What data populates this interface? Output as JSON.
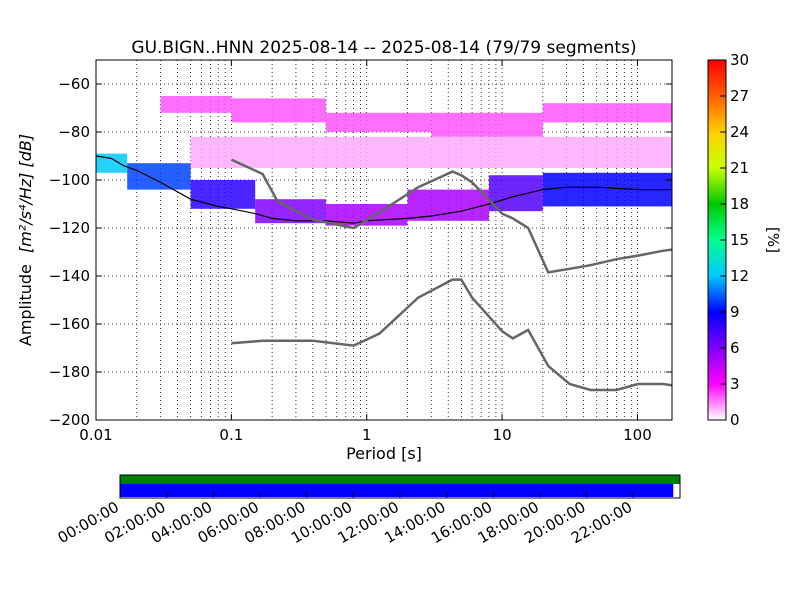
{
  "chart_data": {
    "type": "heatmap",
    "title": "GU.BIGN..HNN   2025-08-14 -- 2025-08-14  (79/79 segments)",
    "xlabel": "Period [s]",
    "ylabel_prefix": "Amplitude",
    "ylabel_unit": "[m²/s⁴/Hz] [dB]",
    "x_scale": "log",
    "xlim": [
      0.01,
      180
    ],
    "ylim": [
      -200,
      -50
    ],
    "x_ticks": [
      0.01,
      0.1,
      1,
      10,
      100
    ],
    "x_tick_labels": [
      "0.01",
      "0.1",
      "1",
      "10",
      "100"
    ],
    "y_ticks": [
      -200,
      -180,
      -160,
      -140,
      -120,
      -100,
      -80,
      -60
    ],
    "y_tick_labels": [
      "−200",
      "−180",
      "−160",
      "−140",
      "−120",
      "−100",
      "−80",
      "−60"
    ],
    "grid": true,
    "colorbar": {
      "label": "[%]",
      "range": [
        0,
        30
      ],
      "ticks": [
        0,
        3,
        6,
        9,
        12,
        15,
        18,
        21,
        24,
        27,
        30
      ],
      "tick_labels": [
        "0",
        "3",
        "6",
        "9",
        "12",
        "15",
        "18",
        "21",
        "24",
        "27",
        "30"
      ],
      "colors": [
        "#ffffff",
        "#ff00ff",
        "#8000ff",
        "#0000ff",
        "#00c8ff",
        "#00ff90",
        "#00c800",
        "#c8ff00",
        "#ffd000",
        "#ff6000",
        "#ff0000"
      ]
    },
    "noise_models": [
      {
        "name": "",
        "points": [
          [
            0.1,
            -91.5
          ],
          [
            0.17,
            -97.5
          ],
          [
            0.22,
            -109
          ],
          [
            0.4,
            -116.5
          ],
          [
            0.8,
            -120
          ],
          [
            1.24,
            -113.5
          ],
          [
            2.4,
            -103
          ],
          [
            4.3,
            -96.5
          ],
          [
            5.0,
            -98
          ],
          [
            6.0,
            -101
          ],
          [
            10,
            -114
          ],
          [
            12,
            -116
          ],
          [
            15.6,
            -120
          ],
          [
            21.9,
            -138.5
          ],
          [
            31.6,
            -137
          ],
          [
            45,
            -135.5
          ],
          [
            70,
            -133
          ],
          [
            101,
            -131.5
          ],
          [
            154,
            -129.5
          ],
          [
            180,
            -129
          ]
        ]
      },
      {
        "name": "",
        "points": [
          [
            0.1,
            -168
          ],
          [
            0.17,
            -167
          ],
          [
            0.4,
            -167
          ],
          [
            0.8,
            -169
          ],
          [
            1.24,
            -164
          ],
          [
            2.4,
            -149
          ],
          [
            4.3,
            -141.5
          ],
          [
            5.0,
            -141.5
          ],
          [
            6.0,
            -149
          ],
          [
            10,
            -163
          ],
          [
            12,
            -166
          ],
          [
            15.6,
            -162.5
          ],
          [
            21.9,
            -177.5
          ],
          [
            31.6,
            -185
          ],
          [
            45,
            -187.5
          ],
          [
            70,
            -187.5
          ],
          [
            101,
            -185
          ],
          [
            154,
            -185
          ],
          [
            180,
            -185.5
          ]
        ]
      }
    ],
    "mode_line": [
      [
        0.01,
        -90
      ],
      [
        0.013,
        -91
      ],
      [
        0.016,
        -94
      ],
      [
        0.02,
        -96
      ],
      [
        0.03,
        -101
      ],
      [
        0.05,
        -108
      ],
      [
        0.08,
        -111
      ],
      [
        0.1,
        -112
      ],
      [
        0.15,
        -114
      ],
      [
        0.2,
        -116
      ],
      [
        0.3,
        -117
      ],
      [
        0.5,
        -117
      ],
      [
        0.8,
        -118
      ],
      [
        1,
        -117
      ],
      [
        2,
        -116
      ],
      [
        3,
        -115
      ],
      [
        5,
        -113
      ],
      [
        8,
        -110
      ],
      [
        12,
        -107
      ],
      [
        20,
        -104
      ],
      [
        30,
        -103
      ],
      [
        50,
        -103
      ],
      [
        100,
        -104
      ],
      [
        180,
        -104
      ]
    ],
    "density_bands": [
      {
        "period_range": [
          0.01,
          0.017
        ],
        "db_range": [
          -97,
          -89
        ],
        "percent": 12
      },
      {
        "period_range": [
          0.017,
          0.05
        ],
        "db_range": [
          -104,
          -93
        ],
        "percent": 10
      },
      {
        "period_range": [
          0.05,
          0.15
        ],
        "db_range": [
          -112,
          -100
        ],
        "percent": 8
      },
      {
        "period_range": [
          0.15,
          0.5
        ],
        "db_range": [
          -118,
          -108
        ],
        "percent": 6
      },
      {
        "period_range": [
          0.5,
          2
        ],
        "db_range": [
          -119,
          -110
        ],
        "percent": 5
      },
      {
        "period_range": [
          2,
          8
        ],
        "db_range": [
          -117,
          -104
        ],
        "percent": 5
      },
      {
        "period_range": [
          8,
          20
        ],
        "db_range": [
          -113,
          -98
        ],
        "percent": 7
      },
      {
        "period_range": [
          20,
          180
        ],
        "db_range": [
          -111,
          -97
        ],
        "percent": 9
      },
      {
        "period_range": [
          0.03,
          0.1
        ],
        "db_range": [
          -72,
          -65
        ],
        "percent": 2
      },
      {
        "period_range": [
          0.1,
          0.5
        ],
        "db_range": [
          -76,
          -66
        ],
        "percent": 2
      },
      {
        "period_range": [
          0.5,
          3
        ],
        "db_range": [
          -80,
          -72
        ],
        "percent": 2
      },
      {
        "period_range": [
          3,
          20
        ],
        "db_range": [
          -82,
          -72
        ],
        "percent": 2
      },
      {
        "period_range": [
          20,
          180
        ],
        "db_range": [
          -76,
          -68
        ],
        "percent": 2
      },
      {
        "period_range": [
          0.05,
          180
        ],
        "db_range": [
          -95,
          -82
        ],
        "percent": 1
      }
    ],
    "timeline": {
      "tick_labels": [
        "00:00:00",
        "02:00:00",
        "04:00:00",
        "06:00:00",
        "08:00:00",
        "10:00:00",
        "12:00:00",
        "14:00:00",
        "16:00:00",
        "18:00:00",
        "20:00:00",
        "22:00:00"
      ],
      "available_fraction": 1.0,
      "used_fraction": 0.988,
      "available_color": "#008000",
      "used_color": "#0000ff"
    }
  }
}
